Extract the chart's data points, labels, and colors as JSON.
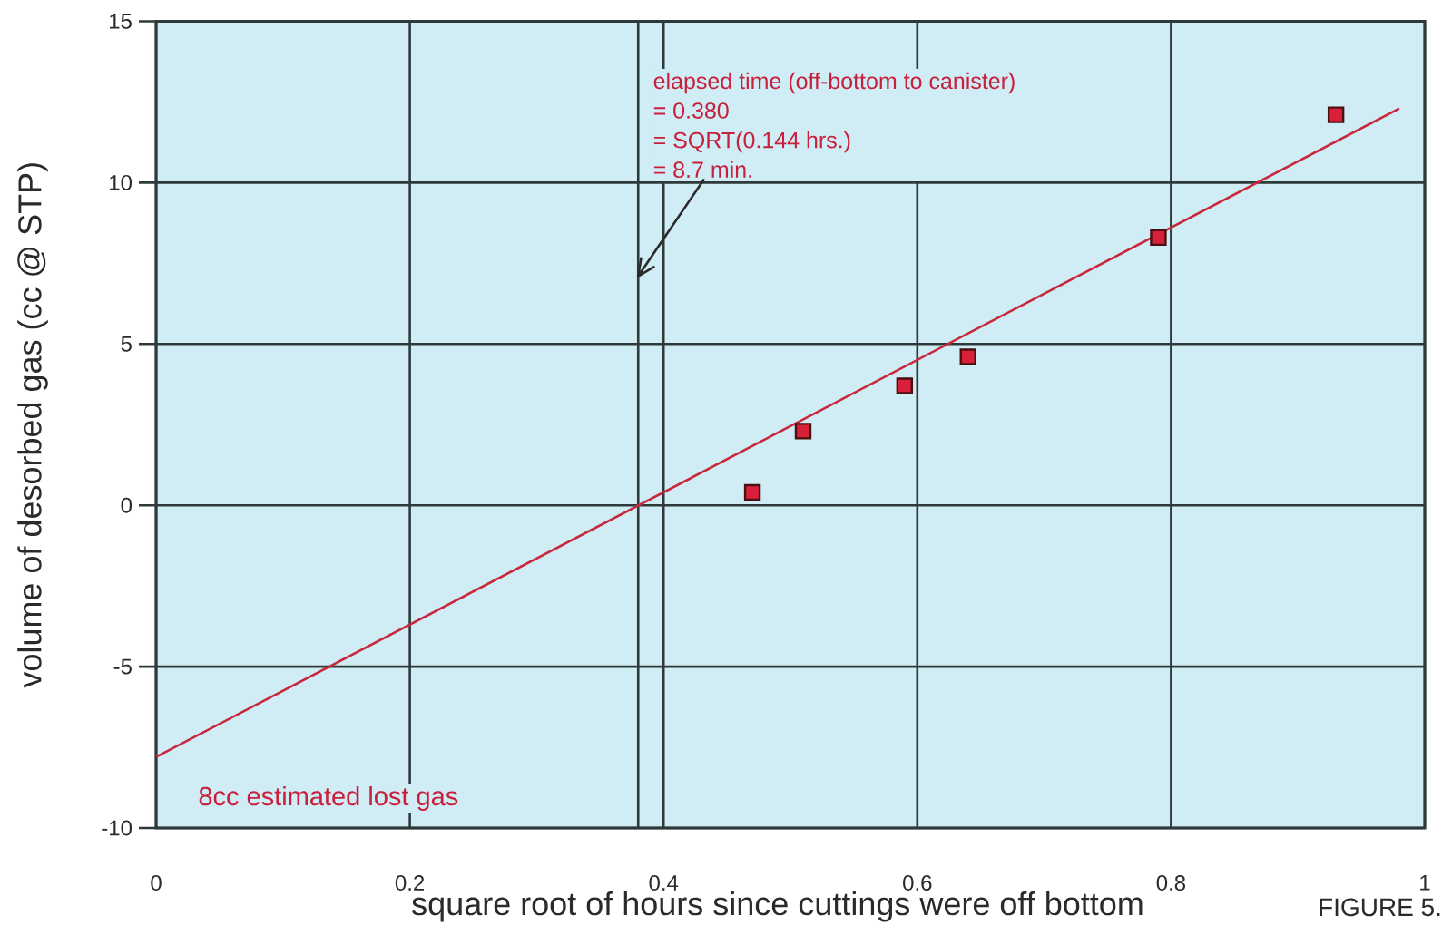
{
  "chart_data": {
    "type": "scatter",
    "xlabel": "square root of hours since cuttings were off bottom",
    "ylabel": "volume of desorbed gas (cc @ STP)",
    "xlim": [
      0,
      1
    ],
    "ylim": [
      -10,
      15
    ],
    "xticks": [
      0,
      0.2,
      0.4,
      0.6,
      0.8,
      1
    ],
    "yticks": [
      -10,
      -5,
      0,
      5,
      10,
      15
    ],
    "grid": true,
    "marker": "square",
    "series": [
      {
        "type": "line",
        "color": "#c8283c",
        "marker": "none",
        "x": [
          0,
          0.98
        ],
        "values": [
          -7.8,
          12.3
        ]
      },
      {
        "color": "#d8203a",
        "x": [
          0.47,
          0.51,
          0.59,
          0.64,
          0.79,
          0.93
        ],
        "values": [
          0.4,
          2.3,
          3.7,
          4.6,
          8.3,
          12.1
        ]
      }
    ],
    "ref_lines": [
      {
        "axis": "x",
        "value": 0.38,
        "color": "#2e3a3a"
      }
    ],
    "annotations": [
      "elapsed time (off-bottom to canister)",
      "= 0.380",
      "= SQRT(0.144 hrs.)",
      {
        "text": "= 8.7 min.",
        "x": 0.38,
        "y": 7.1
      },
      "8cc estimated lost gas",
      "FIGURE 5."
    ]
  }
}
